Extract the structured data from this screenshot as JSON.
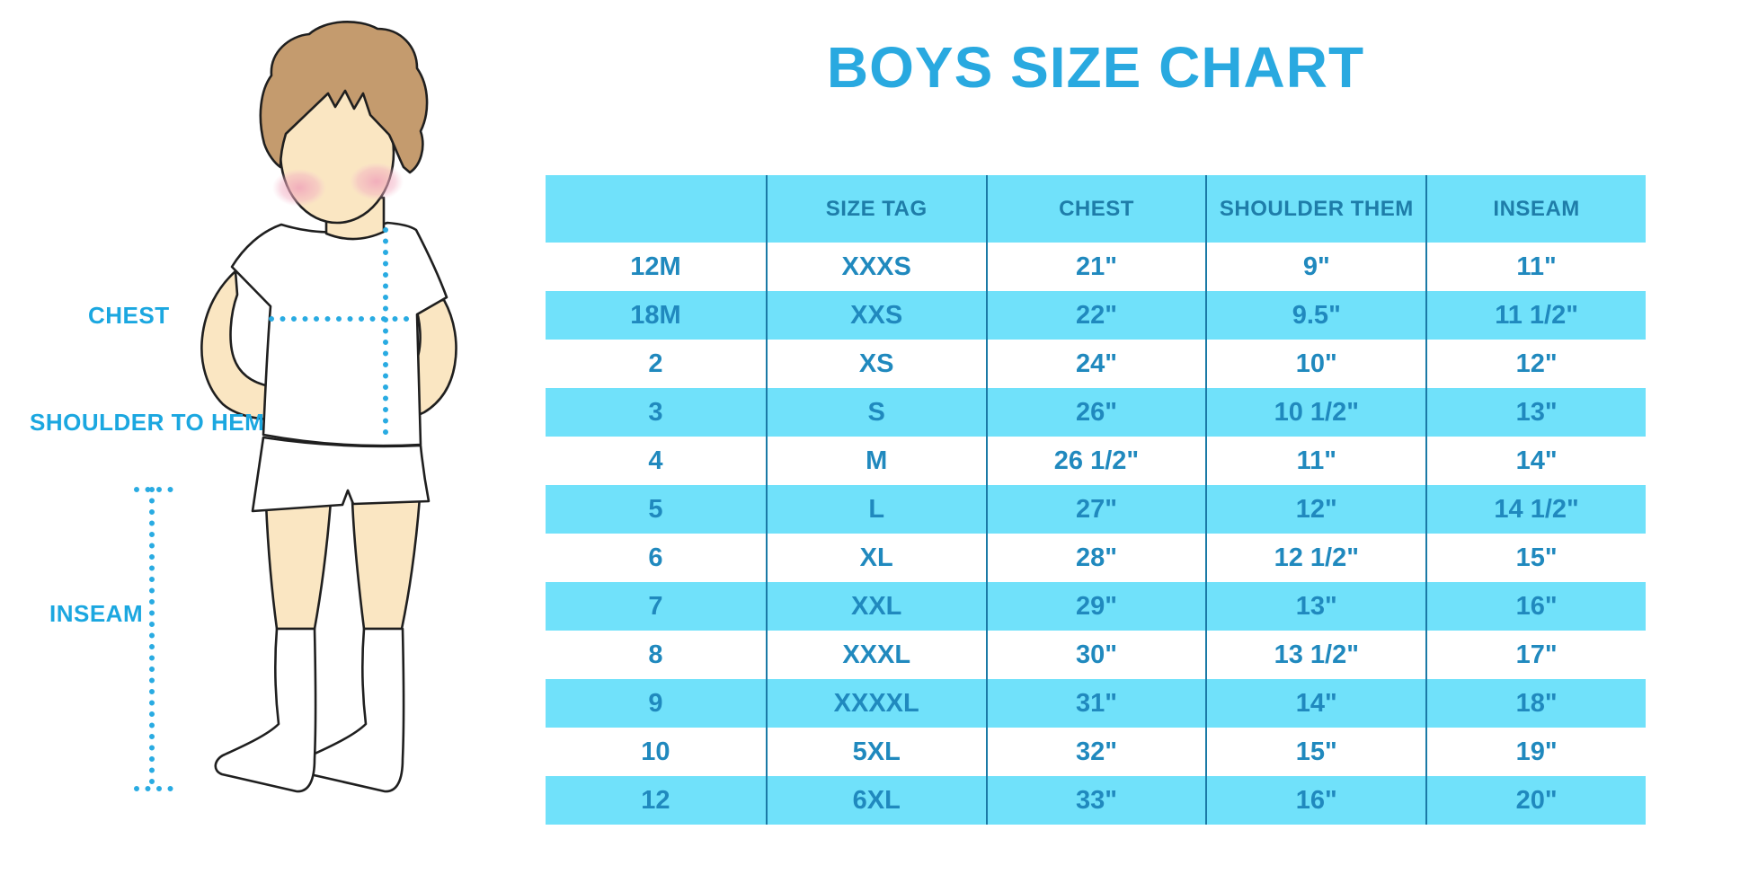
{
  "title": "BOYS SIZE CHART",
  "figure": {
    "labels": {
      "chest": "CHEST",
      "shoulder_to_hem": "SHOULDER TO HEM",
      "inseam": "INSEAM"
    }
  },
  "table": {
    "headers": [
      "",
      "SIZE TAG",
      "CHEST",
      "SHOULDER THEM",
      "INSEAM"
    ],
    "rows": [
      [
        "12M",
        "XXXS",
        "21\"",
        "9\"",
        "11\""
      ],
      [
        "18M",
        "XXS",
        "22\"",
        "9.5\"",
        "11 1/2\""
      ],
      [
        "2",
        "XS",
        "24\"",
        "10\"",
        "12\""
      ],
      [
        "3",
        "S",
        "26\"",
        "10 1/2\"",
        "13\""
      ],
      [
        "4",
        "M",
        "26 1/2\"",
        "11\"",
        "14\""
      ],
      [
        "5",
        "L",
        "27\"",
        "12\"",
        "14 1/2\""
      ],
      [
        "6",
        "XL",
        "28\"",
        "12 1/2\"",
        "15\""
      ],
      [
        "7",
        "XXL",
        "29\"",
        "13\"",
        "16\""
      ],
      [
        "8",
        "XXXL",
        "30\"",
        "13 1/2\"",
        "17\""
      ],
      [
        "9",
        "XXXXL",
        "31\"",
        "14\"",
        "18\""
      ],
      [
        "10",
        "5XL",
        "32\"",
        "15\"",
        "19\""
      ],
      [
        "12",
        "6XL",
        "33\"",
        "16\"",
        "20\""
      ]
    ]
  },
  "colors": {
    "title_blue": "#29A9E0",
    "label_blue": "#1BA7E0",
    "row_stripe_blue": "#70E1FA",
    "divider_blue": "#1B7AA6",
    "cell_text_blue": "#2089BE",
    "header_text_blue": "#1E7DA9",
    "dotted_line_cyan": "#29ABE2",
    "hair_brown": "#C49B6E",
    "skin": "#FAE6C2",
    "blush_pink": "#F2A9BC",
    "outline": "#1f1f1f"
  }
}
